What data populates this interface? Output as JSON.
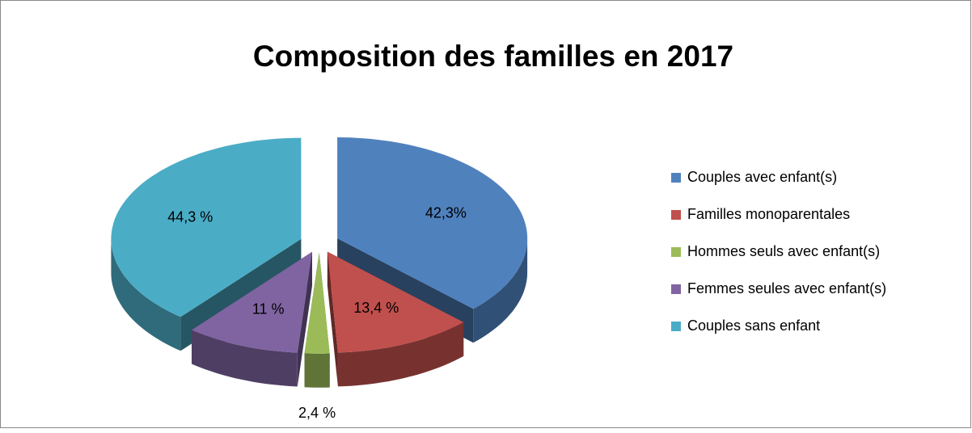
{
  "chart_data": {
    "type": "pie3d",
    "title": "Composition des familles en 2017",
    "categories": [
      "Couples avec enfant(s)",
      "Familles monoparentales",
      "Hommes seuls avec enfant(s)",
      "Femmes seules avec enfant(s)",
      "Couples sans enfant"
    ],
    "values": [
      42.3,
      13.4,
      2.4,
      11,
      44.3
    ],
    "value_labels": [
      "42,3%",
      "13,4 %",
      "2,4 %",
      "11 %",
      "44,3 %"
    ],
    "colors": [
      "#4f81bd",
      "#c0504d",
      "#9bbb59",
      "#8064a2",
      "#4bacc6"
    ],
    "legend": "right"
  }
}
